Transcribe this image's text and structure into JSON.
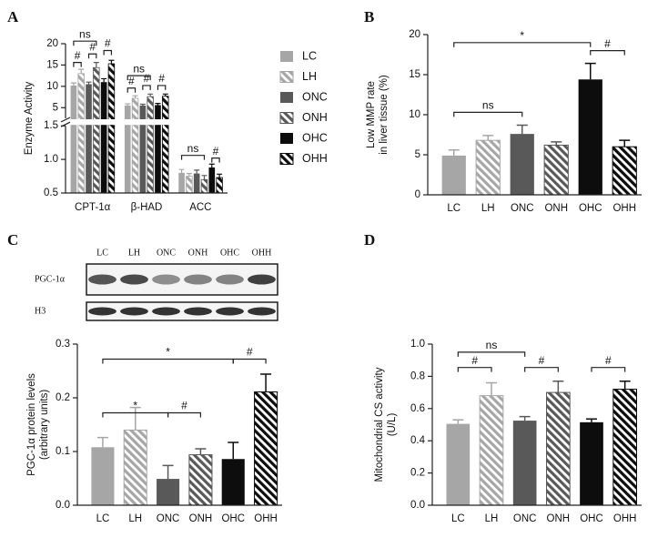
{
  "chart_data": [
    {
      "type": "grouped-bar",
      "panel_label": "A",
      "ylabel": [
        "Enzyme Activity"
      ],
      "categories": [
        "CPT-1α",
        "β-HAD",
        "ACC"
      ],
      "ylim": [
        0.5,
        20
      ],
      "ybreak": [
        1.5,
        2.5
      ],
      "yticks": [
        0.5,
        {
          "value": 1,
          "label": "1.0"
        },
        1.5,
        5,
        10,
        15,
        20
      ],
      "series": [
        {
          "name": "LC",
          "color": "#a6a6a6",
          "hatch": false,
          "values": [
            10.2,
            5.5,
            0.8
          ],
          "errors": [
            0.6,
            0.4,
            0.05
          ]
        },
        {
          "name": "LH",
          "color": "#a6a6a6",
          "hatch": true,
          "values": [
            13.0,
            7.2,
            0.75
          ],
          "errors": [
            1.0,
            0.6,
            0.04
          ]
        },
        {
          "name": "ONC",
          "color": "#595959",
          "hatch": false,
          "values": [
            10.5,
            5.5,
            0.79
          ],
          "errors": [
            0.5,
            0.3,
            0.05
          ]
        },
        {
          "name": "ONH",
          "color": "#595959",
          "hatch": true,
          "values": [
            14.4,
            7.6,
            0.7
          ],
          "errors": [
            1.2,
            0.6,
            0.06
          ]
        },
        {
          "name": "OHC",
          "color": "#0d0d0d",
          "hatch": false,
          "values": [
            11.0,
            5.6,
            0.88
          ],
          "errors": [
            0.8,
            0.4,
            0.05
          ]
        },
        {
          "name": "OHH",
          "color": "#0d0d0d",
          "hatch": true,
          "values": [
            15.3,
            7.7,
            0.73
          ],
          "errors": [
            0.8,
            0.5,
            0.05
          ]
        }
      ],
      "annotations": [
        "ns",
        "#",
        "#",
        "#",
        "ns",
        "#",
        "#",
        "#",
        "ns",
        "#"
      ]
    },
    {
      "type": "bar",
      "panel_label": "B",
      "ylabel": [
        "Low MMP rate",
        "in liver tissue (%)"
      ],
      "categories": [
        "LC",
        "LH",
        "ONC",
        "ONH",
        "OHC",
        "OHH"
      ],
      "values": [
        4.9,
        6.8,
        7.6,
        6.2,
        14.4,
        6.0
      ],
      "errors": [
        0.7,
        0.6,
        1.1,
        0.4,
        2.0,
        0.8
      ],
      "colors": [
        "#a6a6a6",
        "#a6a6a6",
        "#595959",
        "#595959",
        "#0d0d0d",
        "#0d0d0d"
      ],
      "hatch": [
        false,
        true,
        false,
        true,
        false,
        true
      ],
      "ylim": [
        0,
        20
      ],
      "yticks": [
        0,
        5,
        10,
        15,
        20
      ],
      "annotations": [
        "*",
        "#",
        "ns"
      ]
    },
    {
      "type": "bar",
      "panel_label": "C",
      "ylabel": [
        "PGC-1α protein levels",
        "(arbitrary units)"
      ],
      "blot_rows": [
        "PGC-1α",
        "H3"
      ],
      "categories": [
        "LC",
        "LH",
        "ONC",
        "ONH",
        "OHC",
        "OHH"
      ],
      "values": [
        0.108,
        0.14,
        0.049,
        0.094,
        0.086,
        0.211
      ],
      "errors": [
        0.018,
        0.042,
        0.025,
        0.011,
        0.031,
        0.033
      ],
      "colors": [
        "#a6a6a6",
        "#a6a6a6",
        "#595959",
        "#595959",
        "#0d0d0d",
        "#0d0d0d"
      ],
      "hatch": [
        false,
        true,
        false,
        true,
        false,
        true
      ],
      "ylim": [
        0,
        0.3
      ],
      "yticks": [
        {
          "value": 0,
          "label": "0.0"
        },
        0.1,
        0.2,
        0.3
      ],
      "annotations": [
        "*",
        "#",
        "*",
        "#"
      ]
    },
    {
      "type": "bar",
      "panel_label": "D",
      "ylabel": [
        "Mitochondrial CS activity",
        "(U/L)"
      ],
      "categories": [
        "LC",
        "LH",
        "ONC",
        "ONH",
        "OHC",
        "OHH"
      ],
      "values": [
        0.505,
        0.68,
        0.525,
        0.7,
        0.515,
        0.72
      ],
      "errors": [
        0.025,
        0.08,
        0.025,
        0.07,
        0.02,
        0.05
      ],
      "colors": [
        "#a6a6a6",
        "#a6a6a6",
        "#595959",
        "#595959",
        "#0d0d0d",
        "#0d0d0d"
      ],
      "hatch": [
        false,
        true,
        false,
        true,
        false,
        true
      ],
      "ylim": [
        0,
        1
      ],
      "yticks": [
        {
          "value": 0,
          "label": "0.0"
        },
        0.2,
        0.4,
        0.6,
        0.8,
        {
          "value": 1,
          "label": "1.0"
        }
      ],
      "annotations": [
        "ns",
        "#",
        "#",
        "#"
      ]
    }
  ]
}
